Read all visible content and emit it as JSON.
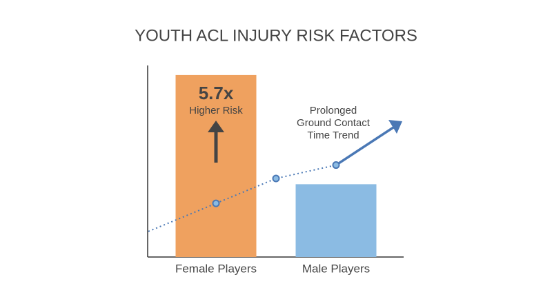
{
  "chart_data": {
    "type": "bar",
    "title": "YOUTH ACL INJURY RISK FACTORS",
    "categories": [
      "Female Players",
      "Male Players"
    ],
    "values": [
      95,
      38
    ],
    "colors": [
      "#efa15f",
      "#8bbbe3"
    ],
    "ylim": [
      0,
      100
    ],
    "annotation": {
      "value": "5.7x",
      "text": "Higher Risk"
    },
    "trend": {
      "label": [
        "Prolonged",
        "Ground Contact",
        "Time Trend"
      ],
      "values": [
        28,
        41,
        48
      ],
      "color": "#4a78b5"
    }
  }
}
